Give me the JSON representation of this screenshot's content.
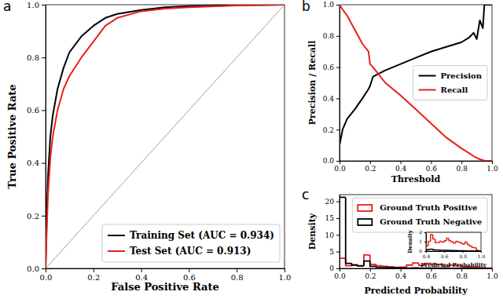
{
  "chart_data": [
    {
      "type": "line",
      "title": "a",
      "x_label": "False Positive Rate",
      "y_label": "True Positive Rate",
      "x": [
        0,
        0.005,
        0.01,
        0.02,
        0.03,
        0.05,
        0.075,
        0.1,
        0.15,
        0.2,
        0.25,
        0.3,
        0.4,
        0.5,
        0.6,
        0.8,
        1.0
      ],
      "series": [
        {
          "name": "Training Set (AUC = 0.934)",
          "color": "#000000",
          "values": [
            0,
            0.2,
            0.35,
            0.5,
            0.58,
            0.68,
            0.76,
            0.82,
            0.88,
            0.92,
            0.95,
            0.965,
            0.98,
            0.99,
            0.995,
            0.998,
            1.0
          ]
        },
        {
          "name": "Test Set (AUC = 0.913)",
          "color": "#e8201a",
          "values": [
            0,
            0.15,
            0.28,
            0.42,
            0.5,
            0.6,
            0.68,
            0.73,
            0.8,
            0.86,
            0.92,
            0.95,
            0.975,
            0.985,
            0.99,
            0.997,
            1.0
          ]
        }
      ],
      "reference_line": {
        "x": [
          0,
          1
        ],
        "values": [
          0,
          1
        ],
        "color": "#a0a0a0"
      },
      "xlim": [
        0,
        1
      ],
      "ylim": [
        0,
        1
      ],
      "xticks": [
        {
          "value": 0,
          "label": "0.0"
        },
        {
          "value": 0.2,
          "label": "0.2"
        },
        {
          "value": 0.4,
          "label": "0.4"
        },
        {
          "value": 0.6,
          "label": "0.6"
        },
        {
          "value": 0.8,
          "label": "0.8"
        },
        {
          "value": 1,
          "label": "1.0"
        }
      ],
      "yticks": [
        {
          "value": 0,
          "label": "0.0"
        },
        {
          "value": 0.2,
          "label": "0.2"
        },
        {
          "value": 0.4,
          "label": "0.4"
        },
        {
          "value": 0.6,
          "label": "0.6"
        },
        {
          "value": 0.8,
          "label": "0.8"
        },
        {
          "value": 1,
          "label": "1.0"
        }
      ],
      "legend": "lower right"
    },
    {
      "type": "line",
      "title": "b",
      "x_label": "Threshold",
      "y_label": "Precision / Recall",
      "x": [
        0,
        0.02,
        0.05,
        0.1,
        0.15,
        0.19,
        0.2,
        0.22,
        0.3,
        0.4,
        0.5,
        0.6,
        0.7,
        0.8,
        0.85,
        0.88,
        0.9,
        0.92,
        0.94,
        0.95,
        1.0
      ],
      "series": [
        {
          "name": "Precision",
          "color": "#000000",
          "values": [
            0.1,
            0.2,
            0.27,
            0.33,
            0.4,
            0.46,
            0.48,
            0.54,
            0.58,
            0.62,
            0.66,
            0.7,
            0.73,
            0.76,
            0.79,
            0.82,
            0.78,
            0.9,
            0.85,
            1.0,
            1.0
          ]
        },
        {
          "name": "Recall",
          "color": "#e8201a",
          "values": [
            1.0,
            0.97,
            0.93,
            0.84,
            0.75,
            0.7,
            0.62,
            0.6,
            0.5,
            0.42,
            0.33,
            0.24,
            0.15,
            0.08,
            0.05,
            0.03,
            0.02,
            0.01,
            0.005,
            0,
            0
          ]
        }
      ],
      "xlim": [
        0,
        1
      ],
      "ylim": [
        0,
        1
      ],
      "xticks": [
        {
          "value": 0,
          "label": "0.0"
        },
        {
          "value": 0.2,
          "label": "0.2"
        },
        {
          "value": 0.4,
          "label": "0.4"
        },
        {
          "value": 0.6,
          "label": "0.6"
        },
        {
          "value": 0.8,
          "label": "0.8"
        },
        {
          "value": 1,
          "label": "1.0"
        }
      ],
      "yticks": [
        {
          "value": 0,
          "label": "0.0"
        },
        {
          "value": 0.2,
          "label": "0.2"
        },
        {
          "value": 0.4,
          "label": "0.4"
        },
        {
          "value": 0.6,
          "label": "0.6"
        },
        {
          "value": 0.8,
          "label": "0.8"
        },
        {
          "value": 1,
          "label": "1.0"
        }
      ],
      "legend": "center right"
    },
    {
      "type": "histogram",
      "title": "c",
      "x_label": "Predicted Probability",
      "y_label": "Density",
      "bins": [
        0,
        0.04,
        0.08,
        0.12,
        0.16,
        0.2,
        0.24,
        0.28,
        0.32,
        0.36,
        0.4,
        0.44,
        0.48,
        0.52,
        0.56,
        0.6,
        0.64,
        0.68,
        0.72,
        0.76,
        0.8,
        0.84,
        0.88,
        0.92,
        0.96,
        1.0
      ],
      "series": [
        {
          "name": "Ground Truth Positive",
          "color": "#e8201a",
          "values": [
            3.0,
            0.8,
            1.0,
            0.7,
            4.0,
            1.2,
            0.8,
            0.6,
            0.5,
            0.3,
            0.4,
            1.0,
            1.6,
            0.9,
            1.5,
            1.3,
            1.2,
            0.6,
            1.0,
            0.8,
            0.5,
            0.4,
            0.3,
            0.2,
            0.1
          ]
        },
        {
          "name": "Ground Truth Negative",
          "color": "#000000",
          "values": [
            21.2,
            1.5,
            1.0,
            0.8,
            2.2,
            0.6,
            0.3,
            0.3,
            0.2,
            0.2,
            0.15,
            0.1,
            0.15,
            0.1,
            0.1,
            0.1,
            0.08,
            0.08,
            0.05,
            0.05,
            0.05,
            0.03,
            0.02,
            0.01,
            0.01
          ]
        }
      ],
      "xlim": [
        0,
        1
      ],
      "ylim": [
        0,
        22
      ],
      "xticks": [
        {
          "value": 0,
          "label": "0.0"
        },
        {
          "value": 0.2,
          "label": "0.2"
        },
        {
          "value": 0.4,
          "label": "0.4"
        },
        {
          "value": 0.6,
          "label": "0.6"
        },
        {
          "value": 0.8,
          "label": "0.8"
        },
        {
          "value": 1,
          "label": "1.0"
        }
      ],
      "yticks": [
        0,
        5,
        10,
        15,
        20
      ],
      "legend": "upper right"
    },
    {
      "type": "histogram",
      "x_label": "Predicted Probability",
      "y_label": "Density",
      "bins": [
        0.4,
        0.425,
        0.45,
        0.475,
        0.5,
        0.525,
        0.55,
        0.575,
        0.6,
        0.625,
        0.65,
        0.675,
        0.7,
        0.725,
        0.75,
        0.775,
        0.8,
        0.825,
        0.85,
        0.875,
        0.9,
        0.925,
        0.95,
        0.975,
        1.0
      ],
      "series": [
        {
          "color": "#e8201a",
          "values": [
            0.55,
            1.05,
            1.75,
            1.3,
            0.9,
            0.9,
            1.05,
            0.95,
            1.1,
            1.35,
            1.1,
            1.0,
            0.85,
            1.05,
            0.95,
            0.85,
            0.75,
            0.95,
            0.7,
            0.55,
            0.4,
            0.35,
            0.1,
            0.05
          ]
        },
        {
          "color": "#000000",
          "values": [
            0.15,
            0.18,
            0.2,
            0.15,
            0.12,
            0.12,
            0.1,
            0.1,
            0.1,
            0.08,
            0.08,
            0.07,
            0.06,
            0.06,
            0.05,
            0.05,
            0.04,
            0.04,
            0.03,
            0.03,
            0.02,
            0.02,
            0.01,
            0.01
          ]
        }
      ],
      "xlim": [
        0.4,
        1.0
      ],
      "ylim": [
        0,
        2
      ],
      "xticks": [
        {
          "value": 0.4,
          "label": "0.4"
        },
        {
          "value": 0.6,
          "label": "0.6"
        },
        {
          "value": 0.8,
          "label": "0.8"
        },
        {
          "value": 1.0,
          "label": "1.0"
        }
      ],
      "yticks": [
        0,
        1,
        2
      ]
    }
  ]
}
